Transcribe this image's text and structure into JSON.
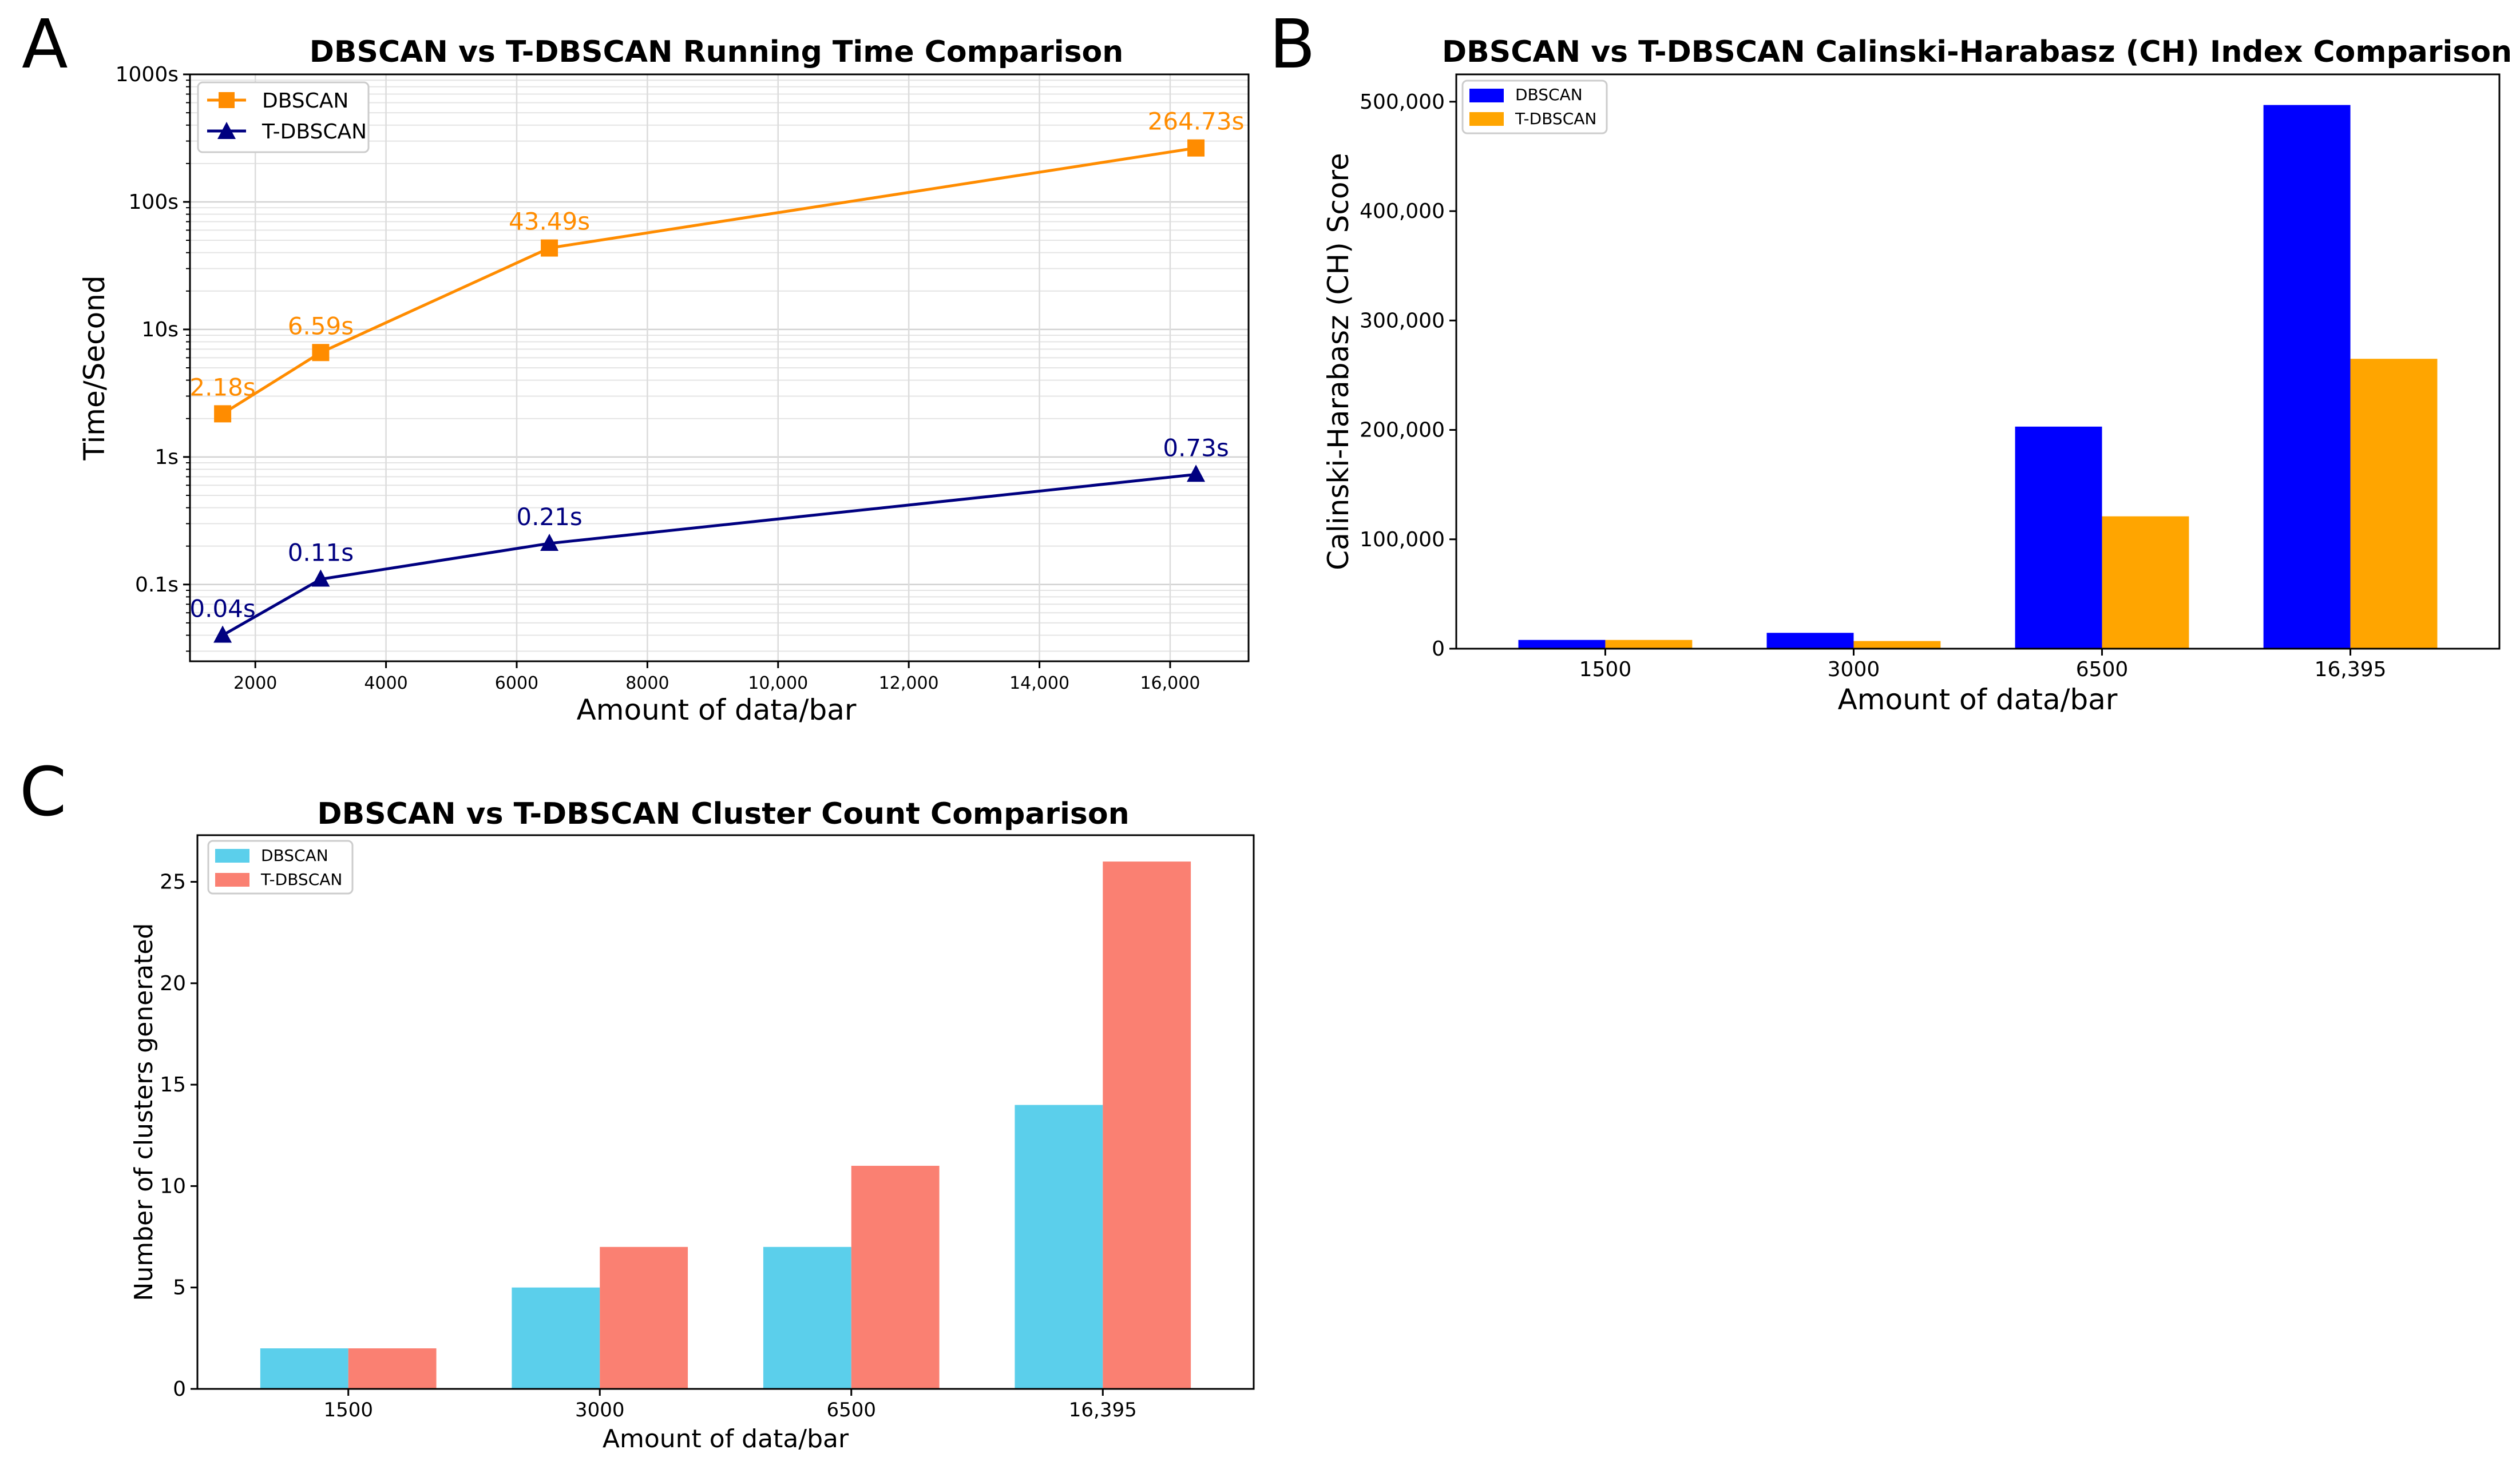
{
  "panels": {
    "a": "A",
    "b": "B",
    "c": "C"
  },
  "colors": {
    "dbscan_time": "#ff8c00",
    "tdbscan_time": "#000080",
    "dbscan_ch": "#0000ff",
    "tdbscan_ch": "#ffa500",
    "dbscan_clusters": "#5bcfeb",
    "tdbscan_clusters": "#fa8072"
  },
  "chart_data": [
    {
      "id": "A",
      "type": "line",
      "title": "DBSCAN vs T-DBSCAN Running Time Comparison",
      "xlabel": "Amount of data/bar",
      "ylabel": "Time/Second",
      "yscale": "log",
      "xlim": [
        1000,
        17200
      ],
      "ylim": [
        0.025,
        1000
      ],
      "xticks": [
        2000,
        4000,
        6000,
        8000,
        10000,
        12000,
        14000,
        16000
      ],
      "xtick_labels": [
        "2000",
        "4000",
        "6000",
        "8000",
        "10,000",
        "12,000",
        "14,000",
        "16,000"
      ],
      "yticks": [
        0.1,
        1,
        10,
        100,
        1000
      ],
      "ytick_labels": [
        "0.1s",
        "1s",
        "10s",
        "100s",
        "1000s"
      ],
      "grid": true,
      "legend": "top-left",
      "series": [
        {
          "name": "DBSCAN",
          "marker": "square",
          "x": [
            1500,
            3000,
            6500,
            16395
          ],
          "y": [
            2.18,
            6.59,
            43.49,
            264.73
          ],
          "labels": [
            "2.18s",
            "6.59s",
            "43.49s",
            "264.73s"
          ]
        },
        {
          "name": "T-DBSCAN",
          "marker": "triangle",
          "x": [
            1500,
            3000,
            6500,
            16395
          ],
          "y": [
            0.04,
            0.11,
            0.21,
            0.73
          ],
          "labels": [
            "0.04s",
            "0.11s",
            "0.21s",
            "0.73s"
          ]
        }
      ]
    },
    {
      "id": "B",
      "type": "bar",
      "title": "DBSCAN vs T-DBSCAN Calinski-Harabasz (CH) Index Comparison",
      "xlabel": "Amount of data/bar",
      "ylabel": "Calinski-Harabasz (CH) Score",
      "categories": [
        "1500",
        "3000",
        "6500",
        "16,395"
      ],
      "ylim": [
        0,
        525000
      ],
      "yticks": [
        0,
        100000,
        200000,
        300000,
        400000,
        500000
      ],
      "ytick_labels": [
        "0",
        "100,000",
        "200,000",
        "300,000",
        "400,000",
        "500,000"
      ],
      "legend": "top-left",
      "series": [
        {
          "name": "DBSCAN",
          "values": [
            8000,
            14500,
            203000,
            497000
          ]
        },
        {
          "name": "T-DBSCAN",
          "values": [
            8000,
            7000,
            121000,
            265000
          ]
        }
      ]
    },
    {
      "id": "C",
      "type": "bar",
      "title": "DBSCAN vs T-DBSCAN Cluster Count Comparison",
      "xlabel": "Amount of data/bar",
      "ylabel": "Number of clusters generated",
      "categories": [
        "1500",
        "3000",
        "6500",
        "16,395"
      ],
      "ylim": [
        0,
        27.3
      ],
      "yticks": [
        0,
        5,
        10,
        15,
        20,
        25
      ],
      "ytick_labels": [
        "0",
        "5",
        "10",
        "15",
        "20",
        "25"
      ],
      "legend": "top-left",
      "series": [
        {
          "name": "DBSCAN",
          "values": [
            2,
            5,
            7,
            14
          ]
        },
        {
          "name": "T-DBSCAN",
          "values": [
            2,
            7,
            11,
            26
          ]
        }
      ]
    }
  ]
}
